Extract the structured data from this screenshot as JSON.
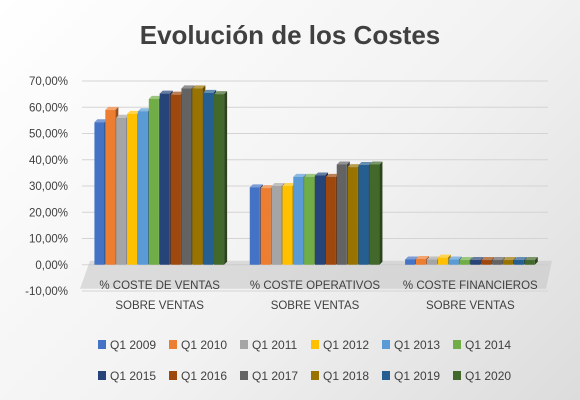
{
  "chart_data": {
    "type": "bar",
    "title": "Evolución de los Costes",
    "xlabel": "",
    "ylabel": "",
    "ylim": [
      -0.1,
      0.7
    ],
    "yticks": [
      "70,00%",
      "60,00%",
      "50,00%",
      "40,00%",
      "30,00%",
      "20,00%",
      "10,00%",
      "0,00%",
      "-10,00%"
    ],
    "categories": [
      [
        "% COSTE DE VENTAS",
        "SOBRE VENTAS"
      ],
      [
        "% COSTE OPERATIVOS",
        "SOBRE VENTAS"
      ],
      [
        "% COSTE FINANCIEROS",
        "SOBRE VENTAS"
      ]
    ],
    "legend_position": "bottom",
    "series": [
      {
        "name": "Q1 2009",
        "color": "#4472c4",
        "values": [
          0.543,
          0.295,
          0.02
        ]
      },
      {
        "name": "Q1 2010",
        "color": "#ed7d31",
        "values": [
          0.59,
          0.292,
          0.022
        ]
      },
      {
        "name": "Q1 2011",
        "color": "#a5a5a5",
        "values": [
          0.56,
          0.3,
          0.02
        ]
      },
      {
        "name": "Q1 2012",
        "color": "#ffc000",
        "values": [
          0.575,
          0.3,
          0.027
        ]
      },
      {
        "name": "Q1 2013",
        "color": "#5b9bd5",
        "values": [
          0.585,
          0.335,
          0.02
        ]
      },
      {
        "name": "Q1 2014",
        "color": "#70ad47",
        "values": [
          0.632,
          0.335,
          0.018
        ]
      },
      {
        "name": "Q1 2015",
        "color": "#264478",
        "values": [
          0.652,
          0.34,
          0.018
        ]
      },
      {
        "name": "Q1 2016",
        "color": "#9e480e",
        "values": [
          0.648,
          0.335,
          0.018
        ]
      },
      {
        "name": "Q1 2017",
        "color": "#636363",
        "values": [
          0.672,
          0.382,
          0.018
        ]
      },
      {
        "name": "Q1 2018",
        "color": "#997300",
        "values": [
          0.672,
          0.372,
          0.018
        ]
      },
      {
        "name": "Q1 2019",
        "color": "#255e91",
        "values": [
          0.655,
          0.38,
          0.018
        ]
      },
      {
        "name": "Q1 2020",
        "color": "#43682b",
        "values": [
          0.65,
          0.382,
          0.018
        ]
      }
    ]
  }
}
